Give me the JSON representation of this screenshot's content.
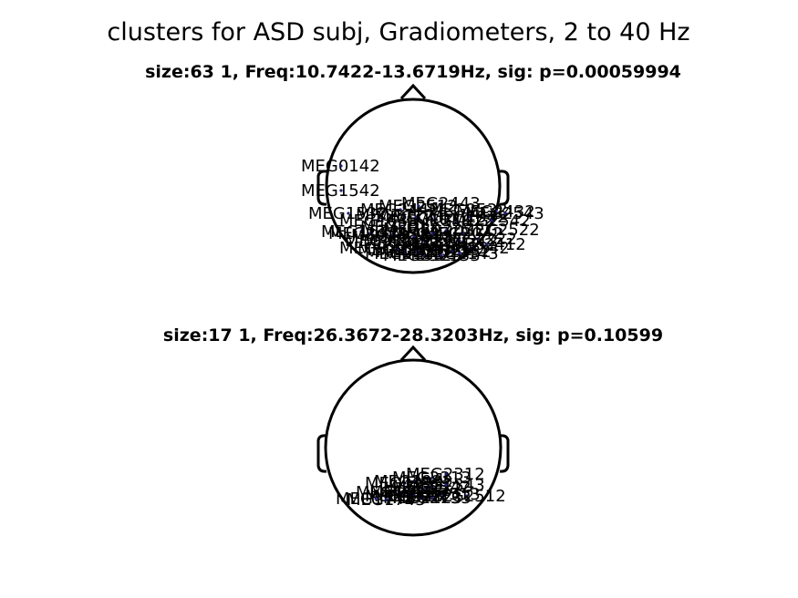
{
  "figure": {
    "title": "clusters for ASD subj, Gradiometers, 2 to 40 Hz"
  },
  "panels": [
    {
      "title": "size:63    1, Freq:10.7422-13.6719Hz, sig: p=0.00059994",
      "sensors": [
        "MEG0142",
        "MEG1542",
        "MEG1532",
        "MEG2443",
        "MEG2432",
        "MEG2522",
        "MEG1633",
        "MEG1642",
        "MEG1722",
        "MEG1732",
        "MEG1912",
        "MEG1922",
        "MEG1942",
        "MEG2012",
        "MEG2022",
        "MEG2032",
        "MEG2042",
        "MEG2112",
        "MEG2122",
        "MEG2132",
        "MEG2142",
        "MEG2212",
        "MEG2222",
        "MEG2232",
        "MEG2242",
        "MEG2312",
        "MEG2322",
        "MEG2332",
        "MEG2342",
        "MEG2412",
        "MEG2422",
        "MEG2442",
        "MEG2512",
        "MEG2532",
        "MEG2542",
        "MEG2543",
        "MEG2113",
        "MEG2123",
        "MEG2133",
        "MEG2143",
        "MEG1913",
        "MEG2013",
        "MEG2313"
      ]
    },
    {
      "title": "size:17    1, Freq:26.3672-28.3203Hz, sig: p=0.10599",
      "sensors": [
        "MEG2313",
        "MEG2312",
        "MEG1933",
        "MEG1932",
        "MEG2513",
        "MEG2512",
        "MEG1922",
        "MEG1923",
        "MEG2122",
        "MEG2123",
        "MEG2133",
        "MEG1742",
        "MEG1743",
        "MEG2113",
        "MEG2112",
        "MEG2342",
        "MEG2343"
      ]
    }
  ]
}
